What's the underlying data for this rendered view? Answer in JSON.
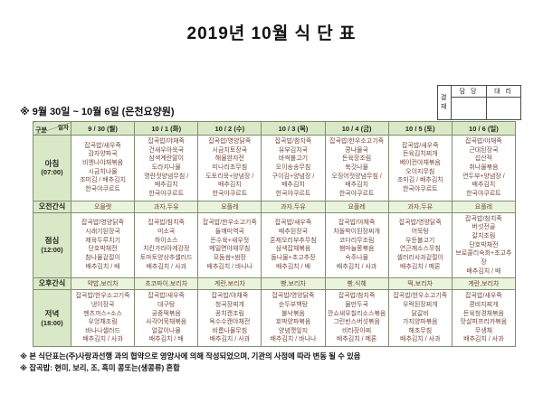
{
  "title": "2019년 10월 식 단 표",
  "approval": {
    "stamp_label": "결재",
    "columns": [
      "담 당",
      "대 리"
    ]
  },
  "period_note": "※  9월  30일  ~  10월  6일  (은천요양원)",
  "table": {
    "corner": {
      "top": "일자",
      "bottom": "구분"
    },
    "dates": [
      "9 / 30 (월)",
      "10 / 1 (화)",
      "10 / 2 (수)",
      "10 / 3 (목)",
      "10 / 4 (금)",
      "10 / 5 (토)",
      "10 / 6 (일)"
    ],
    "rows": [
      {
        "label": "아침",
        "time": "(07:00)",
        "type": "meal",
        "cells": [
          [
            "잡곡밥/새우죽",
            "감자양파국",
            "비엔나야채볶음",
            "시금치나물",
            "조미김 / 배추김치",
            "한국야쿠르트"
          ],
          [
            "잡곡밥/야채죽",
            "건새우아욱국",
            "삼색계란말이",
            "도라지나물",
            "명란젓양념무침 /",
            "배추김치",
            "한국야쿠르트"
          ],
          [
            "잡곡밥/영양닭죽",
            "시금치토장국",
            "해물완자전",
            "미나리초무침",
            "도토리묵+양념장 /",
            "배추김치",
            "한국야쿠르트"
          ],
          [
            "잡곡밥/참치죽",
            "유부김치국",
            "바싹불고기",
            "오이송송무침",
            "구이김+양념장 /",
            "배추김치",
            "한국야쿠르트"
          ],
          [
            "잡곡밥/한우소고기죽",
            "콩나물국",
            "돈육장조림",
            "쑥갓나물",
            "오징어젓양념무침 /",
            "배추김치",
            "한국야쿠르트"
          ],
          [
            "잡곡밥/새우죽",
            "돈육김치찌개",
            "베이컨야채볶음",
            "오이지무침",
            "조미김 / 배추김치",
            "한국야쿠르트"
          ],
          [
            "잡곡밥/야채죽",
            "근대된장국",
            "섭산적",
            "취나물볶음",
            "연두부+양념장 /",
            "배추김치",
            "한국야쿠르트"
          ]
        ]
      },
      {
        "label": "오전간식",
        "type": "snack",
        "cells": [
          "오믈렛",
          "과자,두유",
          "요플레",
          "과자,두유",
          "요플레",
          "과자,두유",
          "요플레"
        ]
      },
      {
        "label": "점심",
        "time": "(12:00)",
        "type": "meal",
        "cells": [
          [
            "잡곡밥/영양닭죽",
            "시래기된장국",
            "제육두루치기",
            "단호박채전",
            "참나물겉절이",
            "배추김치 / 배"
          ],
          [
            "잡곡밥/참치죽",
            "미소국",
            "하이소스",
            "치킨가라아게강정",
            "토마토양상추샐러드",
            "배추김치 / 사과"
          ],
          [
            "잡곡밥/한우소고기죽",
            "들깨미역국",
            "돈수육+새우젓",
            "메밀면야채무침",
            "모둠쌈+쌈장",
            "배추김치 / 바나나"
          ],
          [
            "잡곡밥/새우죽",
            "배추된장국",
            "훈제오리부추무침",
            "삼색잡채볶음",
            "돌나물+초고추장",
            "배추김치 / 배"
          ],
          [
            "잡곡밥/야채죽",
            "차돌박이된장찌개",
            "코다리무조림",
            "햄마늘쫑볶음",
            "숙주나물",
            "배추김치 / 사과"
          ],
          [
            "잡곡밥/영양닭죽",
            "어묵탕",
            "우둔불고기",
            "연근깨소스무침",
            "셀러리사과겉절이",
            "배추김치 / 메론"
          ],
          [
            "잡곡밥/참치죽",
            "버섯전골",
            "갈치조림",
            "단호박채전",
            "브로콜리숙회+초고추장",
            "배추김치 / 배"
          ]
        ]
      },
      {
        "label": "오후간식",
        "type": "snack",
        "cells": [
          "약밥,보리차",
          "초코파이,보리차",
          "계란,보리차",
          "빵,보리차",
          "빵,식혜",
          "떡,보리차",
          "계란,보리차"
        ]
      },
      {
        "label": "저녁",
        "time": "(18:00)",
        "type": "meal",
        "cells": [
          [
            "잡곡밥/한우소고기죽",
            "냉이장국",
            "멘츠까스+소스",
            "우엉채조림",
            "바나나샐러드",
            "배추김치 / 사과"
          ],
          [
            "잡곡밥/새우죽",
            "대구탕",
            "궁중떡볶음",
            "사각어묵채볶음",
            "얼갈이나물",
            "배추김치 / 배"
          ],
          [
            "잡곡밥/야채죽",
            "청국장찌개",
            "꽁치캔조림",
            "옥수수캔야채전",
            "비름나물무침",
            "배추김치 / 사과"
          ],
          [
            "잡곡밥/영양닭죽",
            "순두부백탕",
            "불낙볶음",
            "호박양파볶음",
            "양념깻잎지",
            "배추김치 / 바나나"
          ],
          [
            "잡곡밥/참치죽",
            "물만두국",
            "깐쇼새우칠리소스볶음",
            "그린빈스버섯볶음",
            "비타장아찌",
            "배추김치 / 메론"
          ],
          [
            "잡곡밥/한우소고기죽",
            "우럭된장찌개",
            "닭갈비",
            "가지양파볶음",
            "해초무침",
            "배추김치 / 사과"
          ],
          [
            "잡곡밥/새우죽",
            "콩비지찌개",
            "돈육청경채볶음",
            "맛살파프리카볶음",
            "무생채",
            "배추김치 / 사과"
          ]
        ]
      }
    ]
  },
  "footnotes": [
    "※ 본 식단표는(주)사랑과선행 과의 협약으로 영양사에 의해 작성되었으며, 기관의 사정에 따라 변동 될 수 있음",
    "※ 잡곡밥: 현미, 보리, 조, 흑미 콩또는(생콩류) 혼합"
  ]
}
